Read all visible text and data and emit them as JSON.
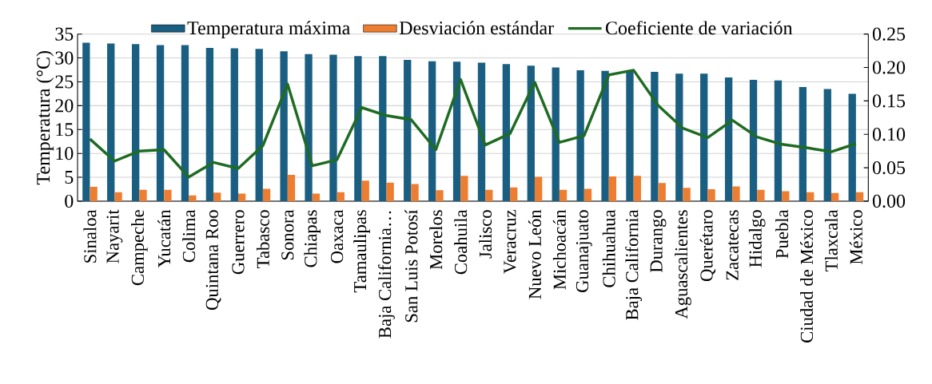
{
  "chart_data": {
    "type": "bar",
    "ylabel": "Temperatura (°C)",
    "categories": [
      "Sinaloa",
      "Nayarit",
      "Campeche",
      "Yucatán",
      "Colima",
      "Quintana Roo",
      "Guerrero",
      "Tabasco",
      "Sonora",
      "Chiapas",
      "Oaxaca",
      "Tamaulipas",
      "Baja California…",
      "San Luis Potosí",
      "Morelos",
      "Coahuila",
      "Jalisco",
      "Veracruz",
      "Nuevo León",
      "Michoacán",
      "Guanajuato",
      "Chihuahua",
      "Baja California",
      "Durango",
      "Aguascalientes",
      "Querétaro",
      "Zacatecas",
      "Hidalgo",
      "Puebla",
      "Ciudad de México",
      "Tlaxcala",
      "México"
    ],
    "series": [
      {
        "name": "Temperatura máxima",
        "color": "#1a5f82",
        "values": [
          33.2,
          33.0,
          32.9,
          32.7,
          32.7,
          32.1,
          32.0,
          31.9,
          31.4,
          30.8,
          30.7,
          30.4,
          30.4,
          29.6,
          29.3,
          29.2,
          29.0,
          28.7,
          28.4,
          28.0,
          27.4,
          27.3,
          27.3,
          27.1,
          26.7,
          26.7,
          25.9,
          25.4,
          25.3,
          23.9,
          23.5,
          22.5
        ]
      },
      {
        "name": "Desviación estándar",
        "color": "#ed7d31",
        "values": [
          3.0,
          1.9,
          2.4,
          2.4,
          1.2,
          1.8,
          1.6,
          2.6,
          5.5,
          1.6,
          1.9,
          4.3,
          3.9,
          3.6,
          2.3,
          5.3,
          2.4,
          2.9,
          5.1,
          2.4,
          2.6,
          5.2,
          5.3,
          3.8,
          2.8,
          2.5,
          3.1,
          2.4,
          2.1,
          1.9,
          1.7,
          1.9
        ]
      },
      {
        "name": "Coeficiente de variación",
        "type": "line",
        "axis": "y2",
        "color": "#1e6b22",
        "values": [
          0.093,
          0.06,
          0.075,
          0.077,
          0.036,
          0.058,
          0.049,
          0.083,
          0.175,
          0.053,
          0.062,
          0.14,
          0.128,
          0.122,
          0.077,
          0.182,
          0.084,
          0.101,
          0.178,
          0.088,
          0.098,
          0.189,
          0.196,
          0.143,
          0.109,
          0.095,
          0.121,
          0.096,
          0.085,
          0.08,
          0.074,
          0.086
        ]
      }
    ],
    "ylim": [
      0,
      35
    ],
    "yticks": [
      0,
      5,
      10,
      15,
      20,
      25,
      30,
      35
    ],
    "y2lim": [
      0,
      0.25
    ],
    "y2ticks": [
      {
        "value": 0,
        "label": "0.00"
      },
      {
        "value": 0.05,
        "label": "0.05"
      },
      {
        "value": 0.1,
        "label": "0.10"
      },
      {
        "value": 0.15,
        "label": "0.15"
      },
      {
        "value": 0.2,
        "label": "0.20"
      },
      {
        "value": 0.25,
        "label": "0.25"
      }
    ],
    "grid": "y",
    "legend": "top"
  }
}
